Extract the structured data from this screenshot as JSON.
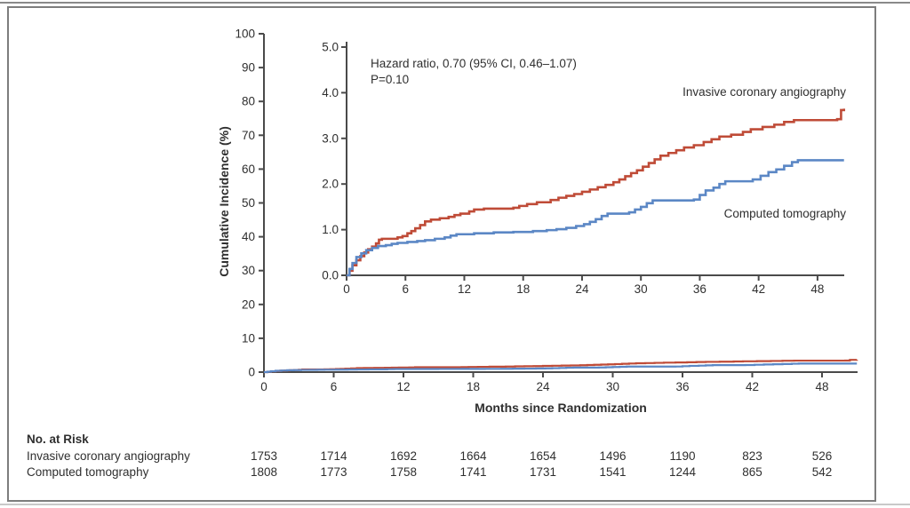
{
  "chart_data": {
    "type": "line-step",
    "title": "",
    "x_axis_label": "Months since Randomization",
    "y_axis_label": "Cumulative Incidence (%)",
    "x_ticks": [
      0,
      6,
      12,
      18,
      24,
      30,
      36,
      42,
      48
    ],
    "xlim": [
      0,
      51
    ],
    "main_axis": {
      "ylim": [
        0,
        100
      ],
      "y_ticks": [
        "0",
        "10",
        "20",
        "30",
        "40",
        "50",
        "60",
        "70",
        "80",
        "90",
        "100"
      ]
    },
    "inset_axis": {
      "ylim": [
        0,
        5
      ],
      "y_ticks": [
        "0.0",
        "1.0",
        "2.0",
        "3.0",
        "4.0",
        "5.0"
      ]
    },
    "annotation": {
      "line1": "Hazard ratio, 0.70 (95% CI, 0.46–1.07)",
      "line2": "P=0.10"
    },
    "legend_position": "on-curve-labels",
    "grid": false,
    "series": [
      {
        "name": "Invasive coronary angiography",
        "color": "#bf4b37",
        "points": [
          [
            0,
            0
          ],
          [
            0.3,
            0.1
          ],
          [
            0.6,
            0.22
          ],
          [
            1,
            0.33
          ],
          [
            1.4,
            0.42
          ],
          [
            1.8,
            0.5
          ],
          [
            2.2,
            0.57
          ],
          [
            2.6,
            0.63
          ],
          [
            3,
            0.7
          ],
          [
            3.3,
            0.78
          ],
          [
            3.6,
            0.8
          ],
          [
            5.2,
            0.83
          ],
          [
            5.7,
            0.86
          ],
          [
            6.2,
            0.92
          ],
          [
            6.6,
            0.97
          ],
          [
            7,
            1.03
          ],
          [
            7.5,
            1.1
          ],
          [
            8,
            1.18
          ],
          [
            8.6,
            1.22
          ],
          [
            9.5,
            1.25
          ],
          [
            10.4,
            1.28
          ],
          [
            11,
            1.32
          ],
          [
            11.6,
            1.35
          ],
          [
            12.5,
            1.4
          ],
          [
            13,
            1.44
          ],
          [
            14,
            1.46
          ],
          [
            17,
            1.48
          ],
          [
            17.6,
            1.52
          ],
          [
            18.4,
            1.56
          ],
          [
            19.4,
            1.6
          ],
          [
            20.8,
            1.65
          ],
          [
            21.6,
            1.7
          ],
          [
            22.4,
            1.74
          ],
          [
            23.2,
            1.78
          ],
          [
            24,
            1.83
          ],
          [
            24.8,
            1.88
          ],
          [
            25.6,
            1.93
          ],
          [
            26.4,
            1.98
          ],
          [
            27.2,
            2.04
          ],
          [
            27.8,
            2.1
          ],
          [
            28.4,
            2.17
          ],
          [
            29,
            2.24
          ],
          [
            29.6,
            2.3
          ],
          [
            30.2,
            2.38
          ],
          [
            30.8,
            2.46
          ],
          [
            31.4,
            2.54
          ],
          [
            32,
            2.62
          ],
          [
            32.8,
            2.68
          ],
          [
            33.6,
            2.74
          ],
          [
            34.4,
            2.8
          ],
          [
            35.4,
            2.85
          ],
          [
            36.4,
            2.92
          ],
          [
            37.2,
            2.98
          ],
          [
            38,
            3.04
          ],
          [
            39.2,
            3.08
          ],
          [
            40.4,
            3.14
          ],
          [
            41.2,
            3.2
          ],
          [
            42.4,
            3.25
          ],
          [
            43.6,
            3.3
          ],
          [
            44.6,
            3.36
          ],
          [
            45.6,
            3.4
          ],
          [
            50,
            3.42
          ],
          [
            50.4,
            3.62
          ],
          [
            51,
            3.65
          ]
        ]
      },
      {
        "name": "Computed tomography",
        "color": "#5b87c5",
        "points": [
          [
            0,
            0
          ],
          [
            0.3,
            0.14
          ],
          [
            0.6,
            0.27
          ],
          [
            1,
            0.4
          ],
          [
            1.5,
            0.48
          ],
          [
            2,
            0.55
          ],
          [
            2.6,
            0.6
          ],
          [
            3.2,
            0.64
          ],
          [
            4,
            0.66
          ],
          [
            4.6,
            0.69
          ],
          [
            5.2,
            0.71
          ],
          [
            6.2,
            0.73
          ],
          [
            7.2,
            0.75
          ],
          [
            8,
            0.77
          ],
          [
            9,
            0.8
          ],
          [
            10,
            0.83
          ],
          [
            10.6,
            0.87
          ],
          [
            11.2,
            0.9
          ],
          [
            13,
            0.92
          ],
          [
            15,
            0.94
          ],
          [
            17,
            0.95
          ],
          [
            19,
            0.97
          ],
          [
            20.4,
            0.99
          ],
          [
            21.4,
            1.01
          ],
          [
            22.4,
            1.04
          ],
          [
            23.4,
            1.08
          ],
          [
            24.2,
            1.12
          ],
          [
            24.8,
            1.17
          ],
          [
            25.4,
            1.23
          ],
          [
            26,
            1.3
          ],
          [
            26.6,
            1.35
          ],
          [
            28.8,
            1.38
          ],
          [
            29.4,
            1.44
          ],
          [
            30,
            1.5
          ],
          [
            30.6,
            1.58
          ],
          [
            31.2,
            1.64
          ],
          [
            35.4,
            1.66
          ],
          [
            36,
            1.76
          ],
          [
            36.6,
            1.86
          ],
          [
            37.4,
            1.92
          ],
          [
            38,
            2.0
          ],
          [
            38.6,
            2.06
          ],
          [
            41.4,
            2.1
          ],
          [
            42.2,
            2.18
          ],
          [
            43,
            2.26
          ],
          [
            43.8,
            2.32
          ],
          [
            44.6,
            2.4
          ],
          [
            45.4,
            2.48
          ],
          [
            46,
            2.52
          ],
          [
            51,
            2.52
          ]
        ]
      }
    ]
  },
  "risk_table": {
    "header": "No. at Risk",
    "months": [
      0,
      6,
      12,
      18,
      24,
      30,
      36,
      42,
      48
    ],
    "rows": [
      {
        "label": "Invasive coronary angiography",
        "values": [
          "1753",
          "1714",
          "1692",
          "1664",
          "1654",
          "1496",
          "1190",
          "823",
          "526"
        ]
      },
      {
        "label": "Computed tomography",
        "values": [
          "1808",
          "1773",
          "1758",
          "1741",
          "1731",
          "1541",
          "1244",
          "865",
          "542"
        ]
      }
    ]
  },
  "colors": {
    "axis": "#4a4a4a",
    "text": "#2f2f2f",
    "red_series": "#bf4b37",
    "blue_series": "#5b87c5"
  }
}
